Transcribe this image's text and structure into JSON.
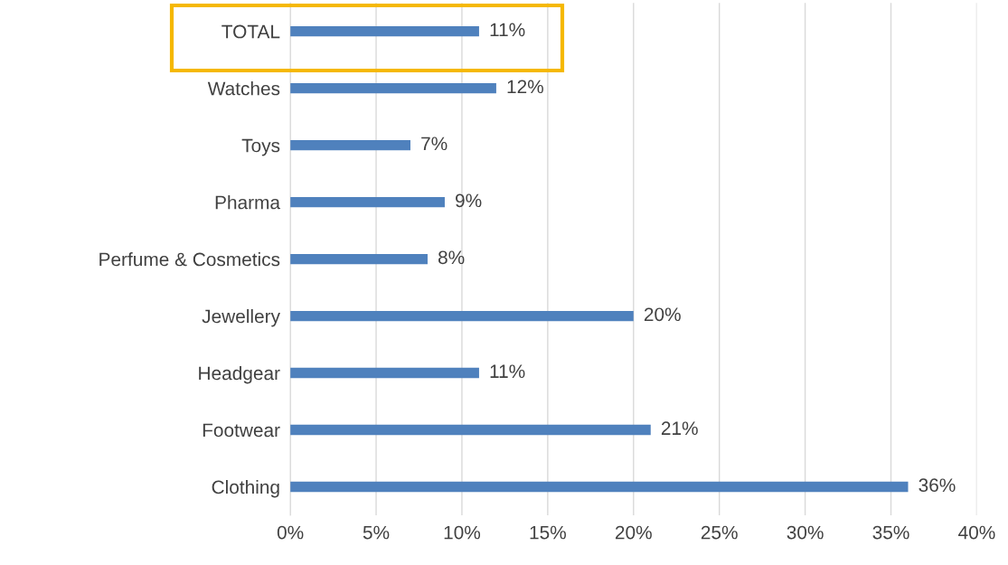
{
  "chart_data": {
    "type": "bar",
    "orientation": "horizontal",
    "categories": [
      "TOTAL",
      "Watches",
      "Toys",
      "Pharma",
      "Perfume & Cosmetics",
      "Jewellery",
      "Headgear",
      "Footwear",
      "Clothing"
    ],
    "values": [
      11,
      12,
      7,
      9,
      8,
      20,
      11,
      21,
      36
    ],
    "value_labels": [
      "11%",
      "12%",
      "7%",
      "9%",
      "8%",
      "20%",
      "11%",
      "21%",
      "36%"
    ],
    "color": "#4f81bd",
    "xlim": [
      0,
      40
    ],
    "xticks": [
      {
        "value": 0,
        "label": "0%"
      },
      {
        "value": 5,
        "label": "5%"
      },
      {
        "value": 10,
        "label": "10%"
      },
      {
        "value": 15,
        "label": "15%"
      },
      {
        "value": 20,
        "label": "20%"
      },
      {
        "value": 25,
        "label": "25%"
      },
      {
        "value": 30,
        "label": "30%"
      },
      {
        "value": 35,
        "label": "35%"
      },
      {
        "value": 40,
        "label": "40%"
      }
    ],
    "grid": "x"
  }
}
